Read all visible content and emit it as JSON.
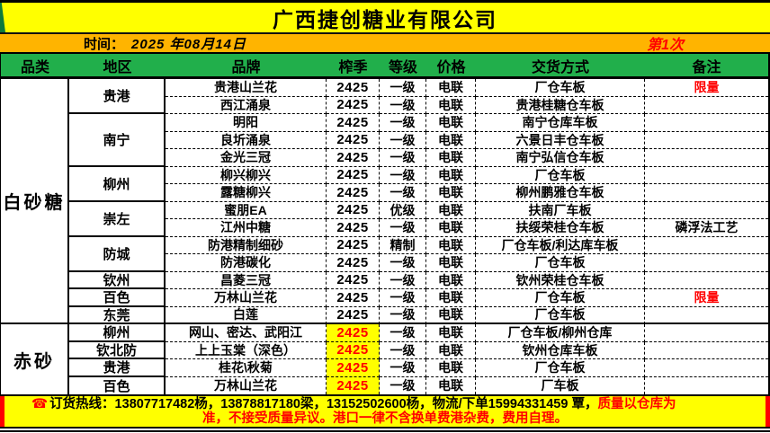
{
  "company": {
    "title": "广西捷创糖业有限公司"
  },
  "meta": {
    "time_label": "时间：",
    "date": "2025 年08月14日",
    "round": "第1次"
  },
  "table": {
    "headers": [
      "品类",
      "地区",
      "品牌",
      "榨季",
      "等级",
      "价格",
      "交货方式",
      "备注"
    ],
    "categories": [
      {
        "label": "白砂糖"
      },
      {
        "label": "赤砂"
      }
    ],
    "regions": [
      "贵港",
      "南宁",
      "柳州",
      "崇左",
      "防城",
      "钦州",
      "百色",
      "东莞",
      "柳州",
      "钦北防",
      "贵港",
      "百色"
    ],
    "rows": [
      {
        "brand": "贵港山兰花",
        "season": "2425",
        "grade": "一级",
        "price": "电联",
        "delivery": "厂仓车板",
        "note": "限量",
        "note_red": true
      },
      {
        "brand": "西江涌泉",
        "season": "2425",
        "grade": "一级",
        "price": "电联",
        "delivery": "贵港桂糖仓车板",
        "note": ""
      },
      {
        "brand": "明阳",
        "season": "2425",
        "grade": "一级",
        "price": "电联",
        "delivery": "南宁仓库车板",
        "note": ""
      },
      {
        "brand": "良圻涌泉",
        "season": "2425",
        "grade": "一级",
        "price": "电联",
        "delivery": "六景日丰仓车板",
        "note": ""
      },
      {
        "brand": "金光三冠",
        "season": "2425",
        "grade": "一级",
        "price": "电联",
        "delivery": "南宁弘信仓车板",
        "note": ""
      },
      {
        "brand": "柳兴柳兴",
        "season": "2425",
        "grade": "一级",
        "price": "电联",
        "delivery": "厂仓车板",
        "note": ""
      },
      {
        "brand": "露糖柳兴",
        "season": "2425",
        "grade": "一级",
        "price": "电联",
        "delivery": "柳州鹏雅仓车板",
        "note": ""
      },
      {
        "brand": "蜜朋EA",
        "season": "2425",
        "grade": "优级",
        "price": "电联",
        "delivery": "扶南厂车板",
        "note": ""
      },
      {
        "brand": "江州中糖",
        "season": "2425",
        "grade": "一级",
        "price": "电联",
        "delivery": "扶绥荣桂仓车板",
        "note": "磷浮法工艺"
      },
      {
        "brand": "防港精制细砂",
        "season": "2425",
        "grade": "精制",
        "price": "电联",
        "delivery": "厂仓车板/利达库车板",
        "note": ""
      },
      {
        "brand": "防港碳化",
        "season": "2425",
        "grade": "一级",
        "price": "电联",
        "delivery": "厂仓车板",
        "note": ""
      },
      {
        "brand": "昌菱三冠",
        "season": "2425",
        "grade": "一级",
        "price": "电联",
        "delivery": "钦州荣桂仓车板",
        "note": ""
      },
      {
        "brand": "万林山兰花",
        "season": "2425",
        "grade": "一级",
        "price": "电联",
        "delivery": "厂仓车板",
        "note": "限量",
        "note_red": true
      },
      {
        "brand": "白莲",
        "season": "2425",
        "grade": "一级",
        "price": "电联",
        "delivery": "厂仓车板",
        "note": ""
      },
      {
        "brand": "网山、密达、武阳江",
        "season": "2425",
        "grade": "一级",
        "price": "电联",
        "delivery": "厂仓车板/柳州仓库",
        "note": "",
        "season_hl": true
      },
      {
        "brand": "上上玉棠（深色）",
        "season": "2425",
        "grade": "一级",
        "price": "电联",
        "delivery": "钦州仓库车板",
        "note": "",
        "season_hl": true
      },
      {
        "brand": "桂花\\秋菊",
        "season": "2425",
        "grade": "一级",
        "price": "电联",
        "delivery": "厂仓车板",
        "note": "",
        "season_hl": true
      },
      {
        "brand": "万林山兰花",
        "season": "2425",
        "grade": "一级",
        "price": "电联",
        "delivery": "厂车板",
        "note": "",
        "season_hl": true
      }
    ]
  },
  "footer": {
    "phone_icon": "☎",
    "hotline_black": "订货热线：13807717482杨，13878817180梁，13152502600杨，物流/下单15994331459 覃，",
    "hotline_red": "质量以仓库为",
    "line2": "准，不接受质量异议。港口一律不含换单费港杂费，费用自理。"
  },
  "colors": {
    "title_yellow": "#FFFF00",
    "band_orange": "#FFB400",
    "header_green": "#21AF4B",
    "alert_red": "#FF0000",
    "highlight_yellow": "#FFFF00"
  }
}
